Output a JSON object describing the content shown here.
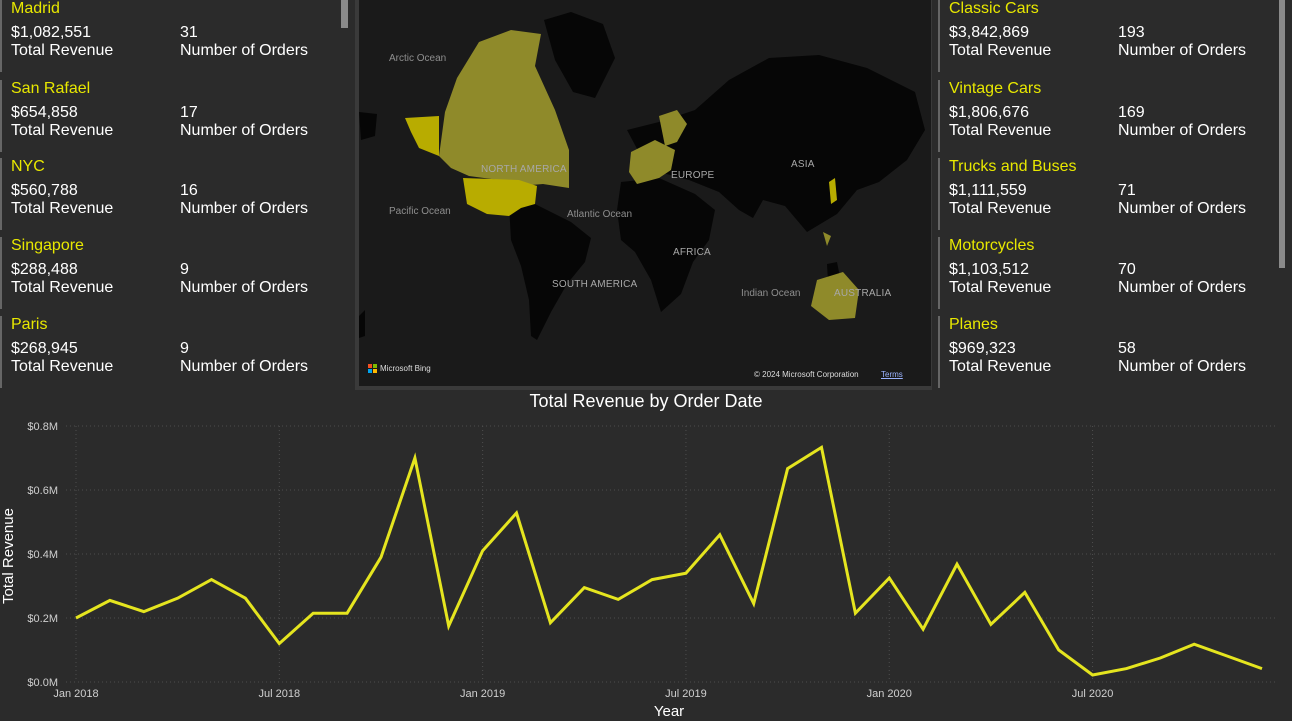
{
  "city_cards": [
    {
      "name": "Madrid",
      "revenue": "$1,082,551",
      "revenue_label": "Total Revenue",
      "orders": "31",
      "orders_label": "Number of Orders"
    },
    {
      "name": "San Rafael",
      "revenue": "$654,858",
      "revenue_label": "Total Revenue",
      "orders": "17",
      "orders_label": "Number of Orders"
    },
    {
      "name": "NYC",
      "revenue": "$560,788",
      "revenue_label": "Total Revenue",
      "orders": "16",
      "orders_label": "Number of Orders"
    },
    {
      "name": "Singapore",
      "revenue": "$288,488",
      "revenue_label": "Total Revenue",
      "orders": "9",
      "orders_label": "Number of Orders"
    },
    {
      "name": "Paris",
      "revenue": "$268,945",
      "revenue_label": "Total Revenue",
      "orders": "9",
      "orders_label": "Number of Orders"
    }
  ],
  "product_cards": [
    {
      "name": "Classic Cars",
      "revenue": "$3,842,869",
      "revenue_label": "Total Revenue",
      "orders": "193",
      "orders_label": "Number of Orders"
    },
    {
      "name": "Vintage Cars",
      "revenue": "$1,806,676",
      "revenue_label": "Total Revenue",
      "orders": "169",
      "orders_label": "Number of Orders"
    },
    {
      "name": "Trucks and Buses",
      "revenue": "$1,111,559",
      "revenue_label": "Total Revenue",
      "orders": "71",
      "orders_label": "Number of Orders"
    },
    {
      "name": "Motorcycles",
      "revenue": "$1,103,512",
      "revenue_label": "Total Revenue",
      "orders": "70",
      "orders_label": "Number of Orders"
    },
    {
      "name": "Planes",
      "revenue": "$969,323",
      "revenue_label": "Total Revenue",
      "orders": "58",
      "orders_label": "Number of Orders"
    }
  ],
  "map": {
    "ocean_labels": {
      "arctic": "Arctic Ocean",
      "pacific": "Pacific Ocean",
      "atlantic": "Atlantic Ocean",
      "indian": "Indian Ocean"
    },
    "continent_labels": {
      "north_america": "NORTH AMERICA",
      "south_america": "SOUTH AMERICA",
      "europe": "EUROPE",
      "africa": "AFRICA",
      "asia": "ASIA",
      "australia": "AUSTRALIA"
    },
    "provider": "Microsoft Bing",
    "copyright": "© 2024 Microsoft Corporation",
    "terms": "Terms",
    "highlight_color": "#8f8a2a",
    "strong_highlight_color": "#b8ac00"
  },
  "colors": {
    "accent": "#e8e800",
    "background": "#2b2b2b",
    "line": "#e5e51f"
  },
  "chart_data": {
    "type": "line",
    "title": "Total Revenue by Order Date",
    "xlabel": "Year",
    "ylabel": "Total Revenue",
    "ylim": [
      0,
      800000
    ],
    "y_ticks": [
      0,
      200000,
      400000,
      600000,
      800000
    ],
    "y_tick_labels": [
      "$0.0M",
      "$0.2M",
      "$0.4M",
      "$0.6M",
      "$0.8M"
    ],
    "x_tick_labels": [
      "Jan 2018",
      "Jul 2018",
      "Jan 2019",
      "Jul 2019",
      "Jan 2020",
      "Jul 2020"
    ],
    "x_tick_months": [
      "2018-01",
      "2018-07",
      "2019-01",
      "2019-07",
      "2020-01",
      "2020-07"
    ],
    "x": [
      "2018-01",
      "2018-02",
      "2018-03",
      "2018-04",
      "2018-05",
      "2018-06",
      "2018-07",
      "2018-08",
      "2018-09",
      "2018-10",
      "2018-11",
      "2018-12",
      "2019-01",
      "2019-02",
      "2019-03",
      "2019-04",
      "2019-05",
      "2019-06",
      "2019-07",
      "2019-08",
      "2019-09",
      "2019-10",
      "2019-11",
      "2019-12",
      "2020-01",
      "2020-02",
      "2020-03",
      "2020-04",
      "2020-05",
      "2020-06",
      "2020-07",
      "2020-08",
      "2020-09",
      "2020-10",
      "2020-11",
      "2020-12"
    ],
    "values": [
      200000,
      255000,
      220000,
      262000,
      320000,
      262000,
      120000,
      215000,
      215000,
      390000,
      700000,
      175000,
      410000,
      528000,
      185000,
      295000,
      258000,
      320000,
      340000,
      460000,
      245000,
      667000,
      733000,
      215000,
      325000,
      165000,
      368000,
      180000,
      280000,
      100000,
      22000,
      42000,
      75000,
      118000,
      80000,
      42000
    ],
    "grid": true,
    "legend": "none"
  }
}
